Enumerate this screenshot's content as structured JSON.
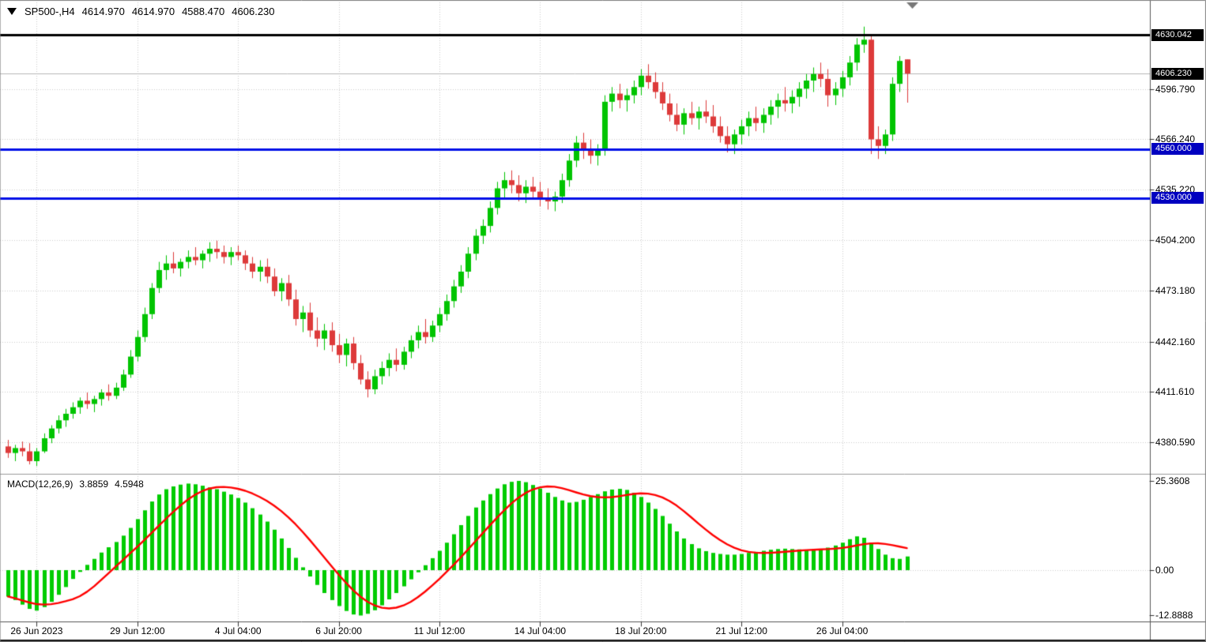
{
  "header": {
    "title": "SP500-,H4",
    "open": "4614.970",
    "high": "4614.970",
    "low": "4588.470",
    "close": "4606.230"
  },
  "chart_data": {
    "type": "candlestick",
    "symbol": "SP500-",
    "timeframe": "H4",
    "title": "SP500-,H4 4614.970 4614.970 4588.470 4606.230",
    "candles": [
      [
        4378,
        4382,
        4371,
        4374
      ],
      [
        4374,
        4379,
        4369,
        4377
      ],
      [
        4377,
        4381,
        4372,
        4375
      ],
      [
        4375,
        4380,
        4367,
        4369
      ],
      [
        4369,
        4377,
        4366,
        4375
      ],
      [
        4375,
        4386,
        4374,
        4383
      ],
      [
        4383,
        4391,
        4380,
        4389
      ],
      [
        4389,
        4397,
        4386,
        4394
      ],
      [
        4394,
        4401,
        4390,
        4398
      ],
      [
        4398,
        4405,
        4395,
        4402
      ],
      [
        4402,
        4408,
        4398,
        4406
      ],
      [
        4406,
        4411,
        4401,
        4404
      ],
      [
        4404,
        4409,
        4399,
        4407
      ],
      [
        4407,
        4413,
        4403,
        4411
      ],
      [
        4411,
        4416,
        4406,
        4409
      ],
      [
        4409,
        4417,
        4407,
        4414
      ],
      [
        4414,
        4425,
        4412,
        4422
      ],
      [
        4422,
        4437,
        4420,
        4433
      ],
      [
        4433,
        4449,
        4430,
        4445
      ],
      [
        4445,
        4463,
        4442,
        4459
      ],
      [
        4459,
        4478,
        4456,
        4475
      ],
      [
        4475,
        4491,
        4472,
        4486
      ],
      [
        4486,
        4495,
        4480,
        4490
      ],
      [
        4490,
        4497,
        4484,
        4487
      ],
      [
        4487,
        4493,
        4482,
        4491
      ],
      [
        4491,
        4498,
        4487,
        4494
      ],
      [
        4494,
        4500,
        4489,
        4492
      ],
      [
        4492,
        4498,
        4487,
        4496
      ],
      [
        4496,
        4503,
        4491,
        4499
      ],
      [
        4499,
        4504,
        4493,
        4497
      ],
      [
        4497,
        4501,
        4490,
        4494
      ],
      [
        4494,
        4500,
        4489,
        4497
      ],
      [
        4497,
        4501,
        4492,
        4495
      ],
      [
        4495,
        4498,
        4486,
        4490
      ],
      [
        4490,
        4494,
        4481,
        4485
      ],
      [
        4485,
        4492,
        4479,
        4488
      ],
      [
        4488,
        4493,
        4478,
        4482
      ],
      [
        4482,
        4487,
        4470,
        4473
      ],
      [
        4473,
        4481,
        4467,
        4478
      ],
      [
        4478,
        4483,
        4464,
        4468
      ],
      [
        4468,
        4474,
        4452,
        4456
      ],
      [
        4456,
        4464,
        4448,
        4460
      ],
      [
        4460,
        4466,
        4445,
        4449
      ],
      [
        4449,
        4457,
        4439,
        4444
      ],
      [
        4444,
        4453,
        4437,
        4449
      ],
      [
        4449,
        4454,
        4436,
        4440
      ],
      [
        4440,
        4447,
        4429,
        4434
      ],
      [
        4434,
        4444,
        4427,
        4441
      ],
      [
        4441,
        4445,
        4425,
        4429
      ],
      [
        4429,
        4434,
        4416,
        4419
      ],
      [
        4419,
        4424,
        4408,
        4413
      ],
      [
        4413,
        4425,
        4410,
        4421
      ],
      [
        4421,
        4430,
        4416,
        4426
      ],
      [
        4426,
        4435,
        4421,
        4431
      ],
      [
        4431,
        4438,
        4424,
        4428
      ],
      [
        4428,
        4439,
        4425,
        4436
      ],
      [
        4436,
        4446,
        4432,
        4443
      ],
      [
        4443,
        4452,
        4438,
        4448
      ],
      [
        4448,
        4456,
        4441,
        4445
      ],
      [
        4445,
        4455,
        4442,
        4452
      ],
      [
        4452,
        4463,
        4448,
        4459
      ],
      [
        4459,
        4471,
        4455,
        4467
      ],
      [
        4467,
        4480,
        4463,
        4476
      ],
      [
        4476,
        4489,
        4472,
        4485
      ],
      [
        4485,
        4500,
        4481,
        4496
      ],
      [
        4496,
        4511,
        4492,
        4507
      ],
      [
        4507,
        4517,
        4502,
        4513
      ],
      [
        4513,
        4528,
        4509,
        4524
      ],
      [
        4524,
        4540,
        4520,
        4536
      ],
      [
        4536,
        4546,
        4530,
        4541
      ],
      [
        4541,
        4547,
        4533,
        4538
      ],
      [
        4538,
        4544,
        4528,
        4533
      ],
      [
        4533,
        4541,
        4527,
        4537
      ],
      [
        4537,
        4543,
        4529,
        4534
      ],
      [
        4534,
        4540,
        4525,
        4530
      ],
      [
        4530,
        4536,
        4523,
        4528
      ],
      [
        4528,
        4534,
        4522,
        4531
      ],
      [
        4531,
        4545,
        4527,
        4541
      ],
      [
        4541,
        4557,
        4537,
        4553
      ],
      [
        4553,
        4568,
        4549,
        4564
      ],
      [
        4564,
        4570,
        4554,
        4559
      ],
      [
        4559,
        4566,
        4551,
        4556
      ],
      [
        4556,
        4563,
        4550,
        4560
      ],
      [
        4560,
        4593,
        4556,
        4589
      ],
      [
        4589,
        4598,
        4583,
        4594
      ],
      [
        4594,
        4600,
        4585,
        4590
      ],
      [
        4590,
        4597,
        4583,
        4593
      ],
      [
        4593,
        4602,
        4588,
        4598
      ],
      [
        4598,
        4609,
        4593,
        4605
      ],
      [
        4605,
        4612,
        4597,
        4601
      ],
      [
        4601,
        4607,
        4591,
        4595
      ],
      [
        4595,
        4601,
        4584,
        4588
      ],
      [
        4588,
        4594,
        4577,
        4581
      ],
      [
        4581,
        4588,
        4571,
        4575
      ],
      [
        4575,
        4585,
        4569,
        4582
      ],
      [
        4582,
        4589,
        4575,
        4579
      ],
      [
        4579,
        4586,
        4572,
        4583
      ],
      [
        4583,
        4590,
        4576,
        4580
      ],
      [
        4580,
        4587,
        4570,
        4574
      ],
      [
        4574,
        4580,
        4564,
        4568
      ],
      [
        4568,
        4574,
        4558,
        4563
      ],
      [
        4563,
        4572,
        4557,
        4569
      ],
      [
        4569,
        4578,
        4563,
        4574
      ],
      [
        4574,
        4583,
        4568,
        4579
      ],
      [
        4579,
        4586,
        4571,
        4576
      ],
      [
        4576,
        4585,
        4570,
        4581
      ],
      [
        4581,
        4590,
        4575,
        4586
      ],
      [
        4586,
        4594,
        4579,
        4590
      ],
      [
        4590,
        4598,
        4583,
        4588
      ],
      [
        4588,
        4596,
        4582,
        4592
      ],
      [
        4592,
        4601,
        4586,
        4597
      ],
      [
        4597,
        4606,
        4591,
        4602
      ],
      [
        4602,
        4610,
        4595,
        4606
      ],
      [
        4606,
        4613,
        4598,
        4603
      ],
      [
        4603,
        4609,
        4586,
        4593
      ],
      [
        4593,
        4601,
        4587,
        4597
      ],
      [
        4597,
        4608,
        4592,
        4604
      ],
      [
        4604,
        4617,
        4599,
        4613
      ],
      [
        4613,
        4628,
        4608,
        4624
      ],
      [
        4624,
        4635,
        4619,
        4627
      ],
      [
        4627,
        4630,
        4557,
        4566
      ],
      [
        4566,
        4574,
        4554,
        4562
      ],
      [
        4562,
        4572,
        4557,
        4569
      ],
      [
        4569,
        4604,
        4565,
        4600
      ],
      [
        4600,
        4617,
        4595,
        4614
      ],
      [
        4614.97,
        4614.97,
        4588.47,
        4606.23
      ]
    ],
    "price_axis_ticks": [
      4596.79,
      4566.24,
      4535.22,
      4504.2,
      4473.18,
      4442.16,
      4411.61,
      4380.59
    ],
    "price_badges": [
      {
        "value": 4630.042,
        "bg": "#000000"
      },
      {
        "value": 4606.23,
        "bg": "#000000"
      },
      {
        "value": 4560.0,
        "bg": "#0000c0"
      },
      {
        "value": 4530.0,
        "bg": "#0000c0"
      }
    ],
    "horizontal_lines": [
      {
        "price": 4630.042,
        "color": "#000000",
        "width": 3
      },
      {
        "price": 4560.0,
        "color": "#0010e8",
        "width": 3
      },
      {
        "price": 4530.0,
        "color": "#0010e8",
        "width": 3
      }
    ],
    "bid_price": 4606.23,
    "date_labels": [
      {
        "label": "26 Jun 2023",
        "bar": 4
      },
      {
        "label": "29 Jun 12:00",
        "bar": 18
      },
      {
        "label": "4 Jul 04:00",
        "bar": 32
      },
      {
        "label": "6 Jul 20:00",
        "bar": 46
      },
      {
        "label": "11 Jul 12:00",
        "bar": 60
      },
      {
        "label": "14 Jul 04:00",
        "bar": 74
      },
      {
        "label": "18 Jul 20:00",
        "bar": 88
      },
      {
        "label": "21 Jul 12:00",
        "bar": 102
      },
      {
        "label": "26 Jul 04:00",
        "bar": 116
      }
    ],
    "macd": {
      "label": "MACD(12,26,9)",
      "main_value": "3.8859",
      "signal_value": "4.5948",
      "signal_period": 9,
      "signal_method": "sma-of-histogram",
      "axis_ticks": [
        {
          "value": 25.3608,
          "label": "25.3608"
        },
        {
          "value": 0,
          "label": "0.00"
        },
        {
          "value": -12.8888,
          "label": "-12.8888"
        }
      ],
      "histogram": [
        -7.5,
        -8.5,
        -9.8,
        -11,
        -11.5,
        -10.5,
        -9,
        -7,
        -4.8,
        -2.5,
        -0.5,
        1.5,
        3.2,
        5,
        6.5,
        8,
        9.8,
        12,
        14.5,
        17,
        19.5,
        21.5,
        23,
        23.8,
        24.3,
        24.6,
        24.4,
        24,
        23.5,
        23,
        22.3,
        21.5,
        20.5,
        19.2,
        17.6,
        15.8,
        13.8,
        11.5,
        9,
        6.3,
        3.5,
        0.8,
        -1.8,
        -4.2,
        -6.5,
        -8.5,
        -10.2,
        -11.6,
        -12.6,
        -12.889,
        -12.4,
        -11.4,
        -10,
        -8.3,
        -6.5,
        -4.6,
        -2.6,
        -0.6,
        1.4,
        3.4,
        5.5,
        7.8,
        10.2,
        12.8,
        15.4,
        17.8,
        19.8,
        21.6,
        23.2,
        24.4,
        25.1,
        25.3608,
        25,
        24.2,
        23.2,
        22,
        20.8,
        19.8,
        19.2,
        19.4,
        20,
        20.8,
        21.6,
        22.4,
        22.9,
        23.1,
        22.8,
        22,
        20.8,
        19.2,
        17.4,
        15.4,
        13.2,
        11,
        9,
        7.4,
        6.2,
        5.4,
        4.9,
        4.6,
        4.4,
        4.4,
        4.6,
        4.9,
        5.2,
        5.5,
        5.8,
        6,
        6.1,
        6,
        5.9,
        5.8,
        5.8,
        6,
        6.4,
        7,
        7.8,
        8.8,
        9.6,
        9.2,
        7.8,
        6,
        4.4,
        3.4,
        3.2,
        3.8859
      ]
    },
    "colors": {
      "bull": "#00c400",
      "bear": "#dd3a3a",
      "histogram": "#00cc00",
      "signal_line": "#ff0000",
      "grid": "#cdcdcd",
      "bid_line": "#b8b8b8",
      "axis_line": "#555555",
      "separator": "#9a9a9a",
      "shift_marker": "#777777"
    },
    "ylim_main": [
      4360.9,
      4636.8
    ],
    "ylim_macd": [
      -14.6,
      26.9
    ],
    "grid": "dotted"
  }
}
